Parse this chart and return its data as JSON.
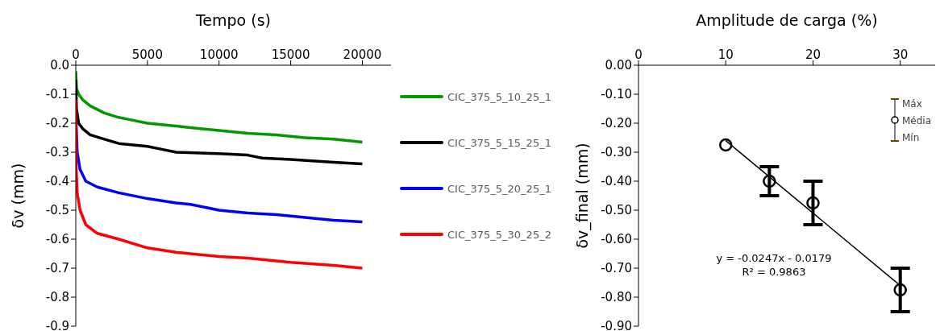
{
  "chart_data": [
    {
      "type": "line",
      "xlabel": "Tempo (s)",
      "ylabel": "δv (mm)",
      "xlim": [
        0,
        22000
      ],
      "xticks": [
        0,
        5000,
        10000,
        15000,
        20000
      ],
      "ylim": [
        -0.9,
        0
      ],
      "yticks": [
        {
          "value": -0.9,
          "label": "-0.9"
        },
        {
          "value": -0.8,
          "label": "-0.8"
        },
        {
          "value": -0.7,
          "label": "-0.7"
        },
        {
          "value": -0.6,
          "label": "-0.6"
        },
        {
          "value": -0.5,
          "label": "-0.5"
        },
        {
          "value": -0.4,
          "label": "-0.4"
        },
        {
          "value": -0.3,
          "label": "-0.3"
        },
        {
          "value": -0.2,
          "label": "-0.2"
        },
        {
          "value": -0.1,
          "label": "-0.1"
        },
        {
          "value": 0,
          "label": "0.0"
        }
      ],
      "grid": false,
      "legend": "right",
      "marker": "none",
      "series": [
        {
          "name": "CIC_375_5_10_25_1",
          "color": "#009900",
          "x": [
            0,
            50,
            200,
            500,
            1000,
            2000,
            3000,
            4000,
            5000,
            6000,
            7000,
            8000,
            10000,
            12000,
            14000,
            16000,
            18000,
            20000
          ],
          "values": [
            -0.02,
            -0.08,
            -0.1,
            -0.12,
            -0.14,
            -0.165,
            -0.18,
            -0.19,
            -0.2,
            -0.205,
            -0.21,
            -0.215,
            -0.225,
            -0.235,
            -0.24,
            -0.25,
            -0.255,
            -0.265
          ]
        },
        {
          "name": "CIC_375_5_15_25_1",
          "color": "#000000",
          "x": [
            0,
            50,
            200,
            500,
            1000,
            2000,
            3000,
            5000,
            6000,
            7000,
            10000,
            12000,
            13000,
            15000,
            18000,
            20000
          ],
          "values": [
            -0.05,
            -0.15,
            -0.2,
            -0.22,
            -0.24,
            -0.255,
            -0.27,
            -0.28,
            -0.29,
            -0.3,
            -0.305,
            -0.31,
            -0.32,
            -0.325,
            -0.335,
            -0.34
          ]
        },
        {
          "name": "CIC_375_5_20_25_1",
          "color": "#0000ff",
          "x": [
            30,
            100,
            300,
            700,
            1500,
            3000,
            5000,
            7000,
            8000,
            10000,
            12000,
            14000,
            16000,
            18000,
            20000
          ],
          "values": [
            -0.2,
            -0.3,
            -0.36,
            -0.4,
            -0.42,
            -0.44,
            -0.46,
            -0.475,
            -0.48,
            -0.5,
            -0.51,
            -0.515,
            -0.525,
            -0.535,
            -0.54
          ]
        },
        {
          "name": "CIC_375_5_30_25_2",
          "color": "#ff0000",
          "x": [
            0,
            30,
            100,
            300,
            700,
            1500,
            3000,
            5000,
            7000,
            10000,
            12000,
            15000,
            18000,
            20000
          ],
          "values": [
            -0.12,
            -0.35,
            -0.44,
            -0.5,
            -0.55,
            -0.58,
            -0.6,
            -0.63,
            -0.645,
            -0.66,
            -0.665,
            -0.68,
            -0.69,
            -0.7
          ]
        }
      ]
    },
    {
      "type": "scatter",
      "xlabel": "Amplitude de carga (%)",
      "ylabel": "δv_final (mm)",
      "xlim": [
        0,
        34
      ],
      "xticks": [
        0,
        10,
        20,
        30
      ],
      "ylim": [
        -0.9,
        0
      ],
      "yticks": [
        {
          "value": -0.9,
          "label": "-0.90"
        },
        {
          "value": -0.8,
          "label": "-0.80"
        },
        {
          "value": -0.7,
          "label": "-0.70"
        },
        {
          "value": -0.6,
          "label": "-0.60"
        },
        {
          "value": -0.5,
          "label": "-0.50"
        },
        {
          "value": -0.4,
          "label": "-0.40"
        },
        {
          "value": -0.3,
          "label": "-0.30"
        },
        {
          "value": -0.2,
          "label": "-0.20"
        },
        {
          "value": -0.1,
          "label": "-0.10"
        },
        {
          "value": 0,
          "label": "0.00"
        }
      ],
      "grid": false,
      "annotations": [
        "y = -0.0247x - 0.0179",
        "R² = 0.9863",
        "Máx",
        "Média",
        "Mín"
      ],
      "series": [
        {
          "type": "scatter",
          "color": "#000000",
          "marker": "circle",
          "x": [
            10,
            15,
            20,
            30
          ],
          "values": [
            -0.275,
            -0.4,
            -0.475,
            -0.775
          ],
          "errors": [
            null,
            0.05,
            0.075,
            0.075
          ]
        },
        {
          "type": "line",
          "color": "#000000",
          "marker": "none",
          "x": [
            10,
            30
          ],
          "values": [
            -0.26,
            -0.76
          ]
        }
      ]
    }
  ]
}
